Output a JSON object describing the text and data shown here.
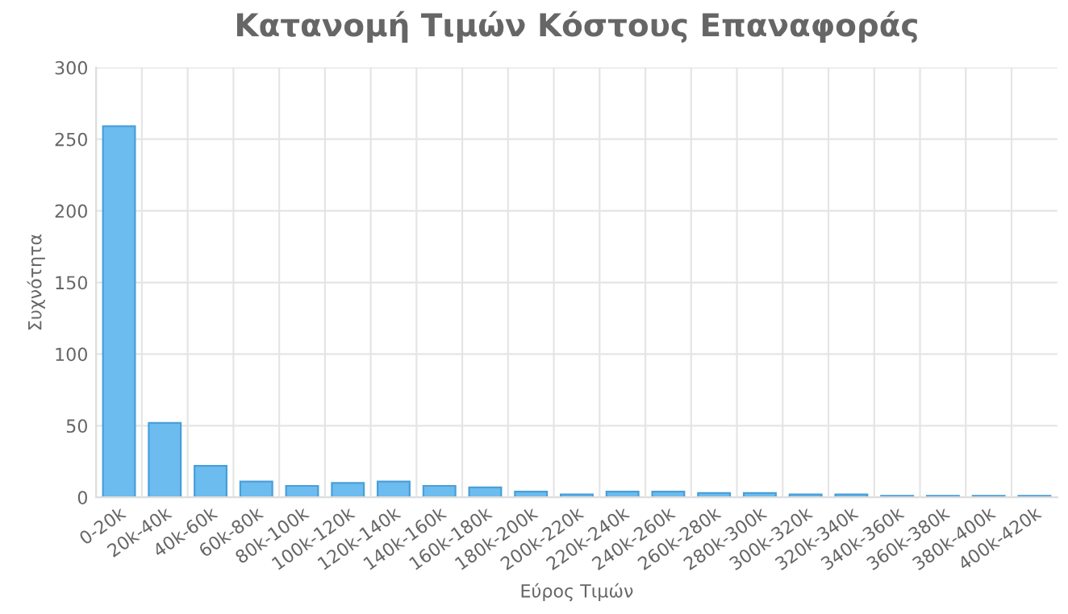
{
  "chart_data": {
    "type": "bar",
    "title": "Κατανομή Τιμών Κόστους Επαναφοράς",
    "xlabel": "Εύρος Τιμών",
    "ylabel": "Συχνότητα",
    "categories": [
      "0-20k",
      "20k-40k",
      "40k-60k",
      "60k-80k",
      "80k-100k",
      "100k-120k",
      "120k-140k",
      "140k-160k",
      "160k-180k",
      "180k-200k",
      "200k-220k",
      "220k-240k",
      "240k-260k",
      "260k-280k",
      "280k-300k",
      "300k-320k",
      "320k-340k",
      "340k-360k",
      "360k-380k",
      "380k-400k",
      "400k-420k"
    ],
    "values": [
      259,
      52,
      22,
      11,
      8,
      10,
      11,
      8,
      7,
      4,
      2,
      4,
      4,
      3,
      3,
      2,
      2,
      1,
      1,
      1,
      1
    ],
    "color": "#6cbcf0",
    "ylim": [
      0,
      300
    ],
    "yticks": [
      0,
      50,
      100,
      150,
      200,
      250,
      300
    ],
    "grid": true
  }
}
